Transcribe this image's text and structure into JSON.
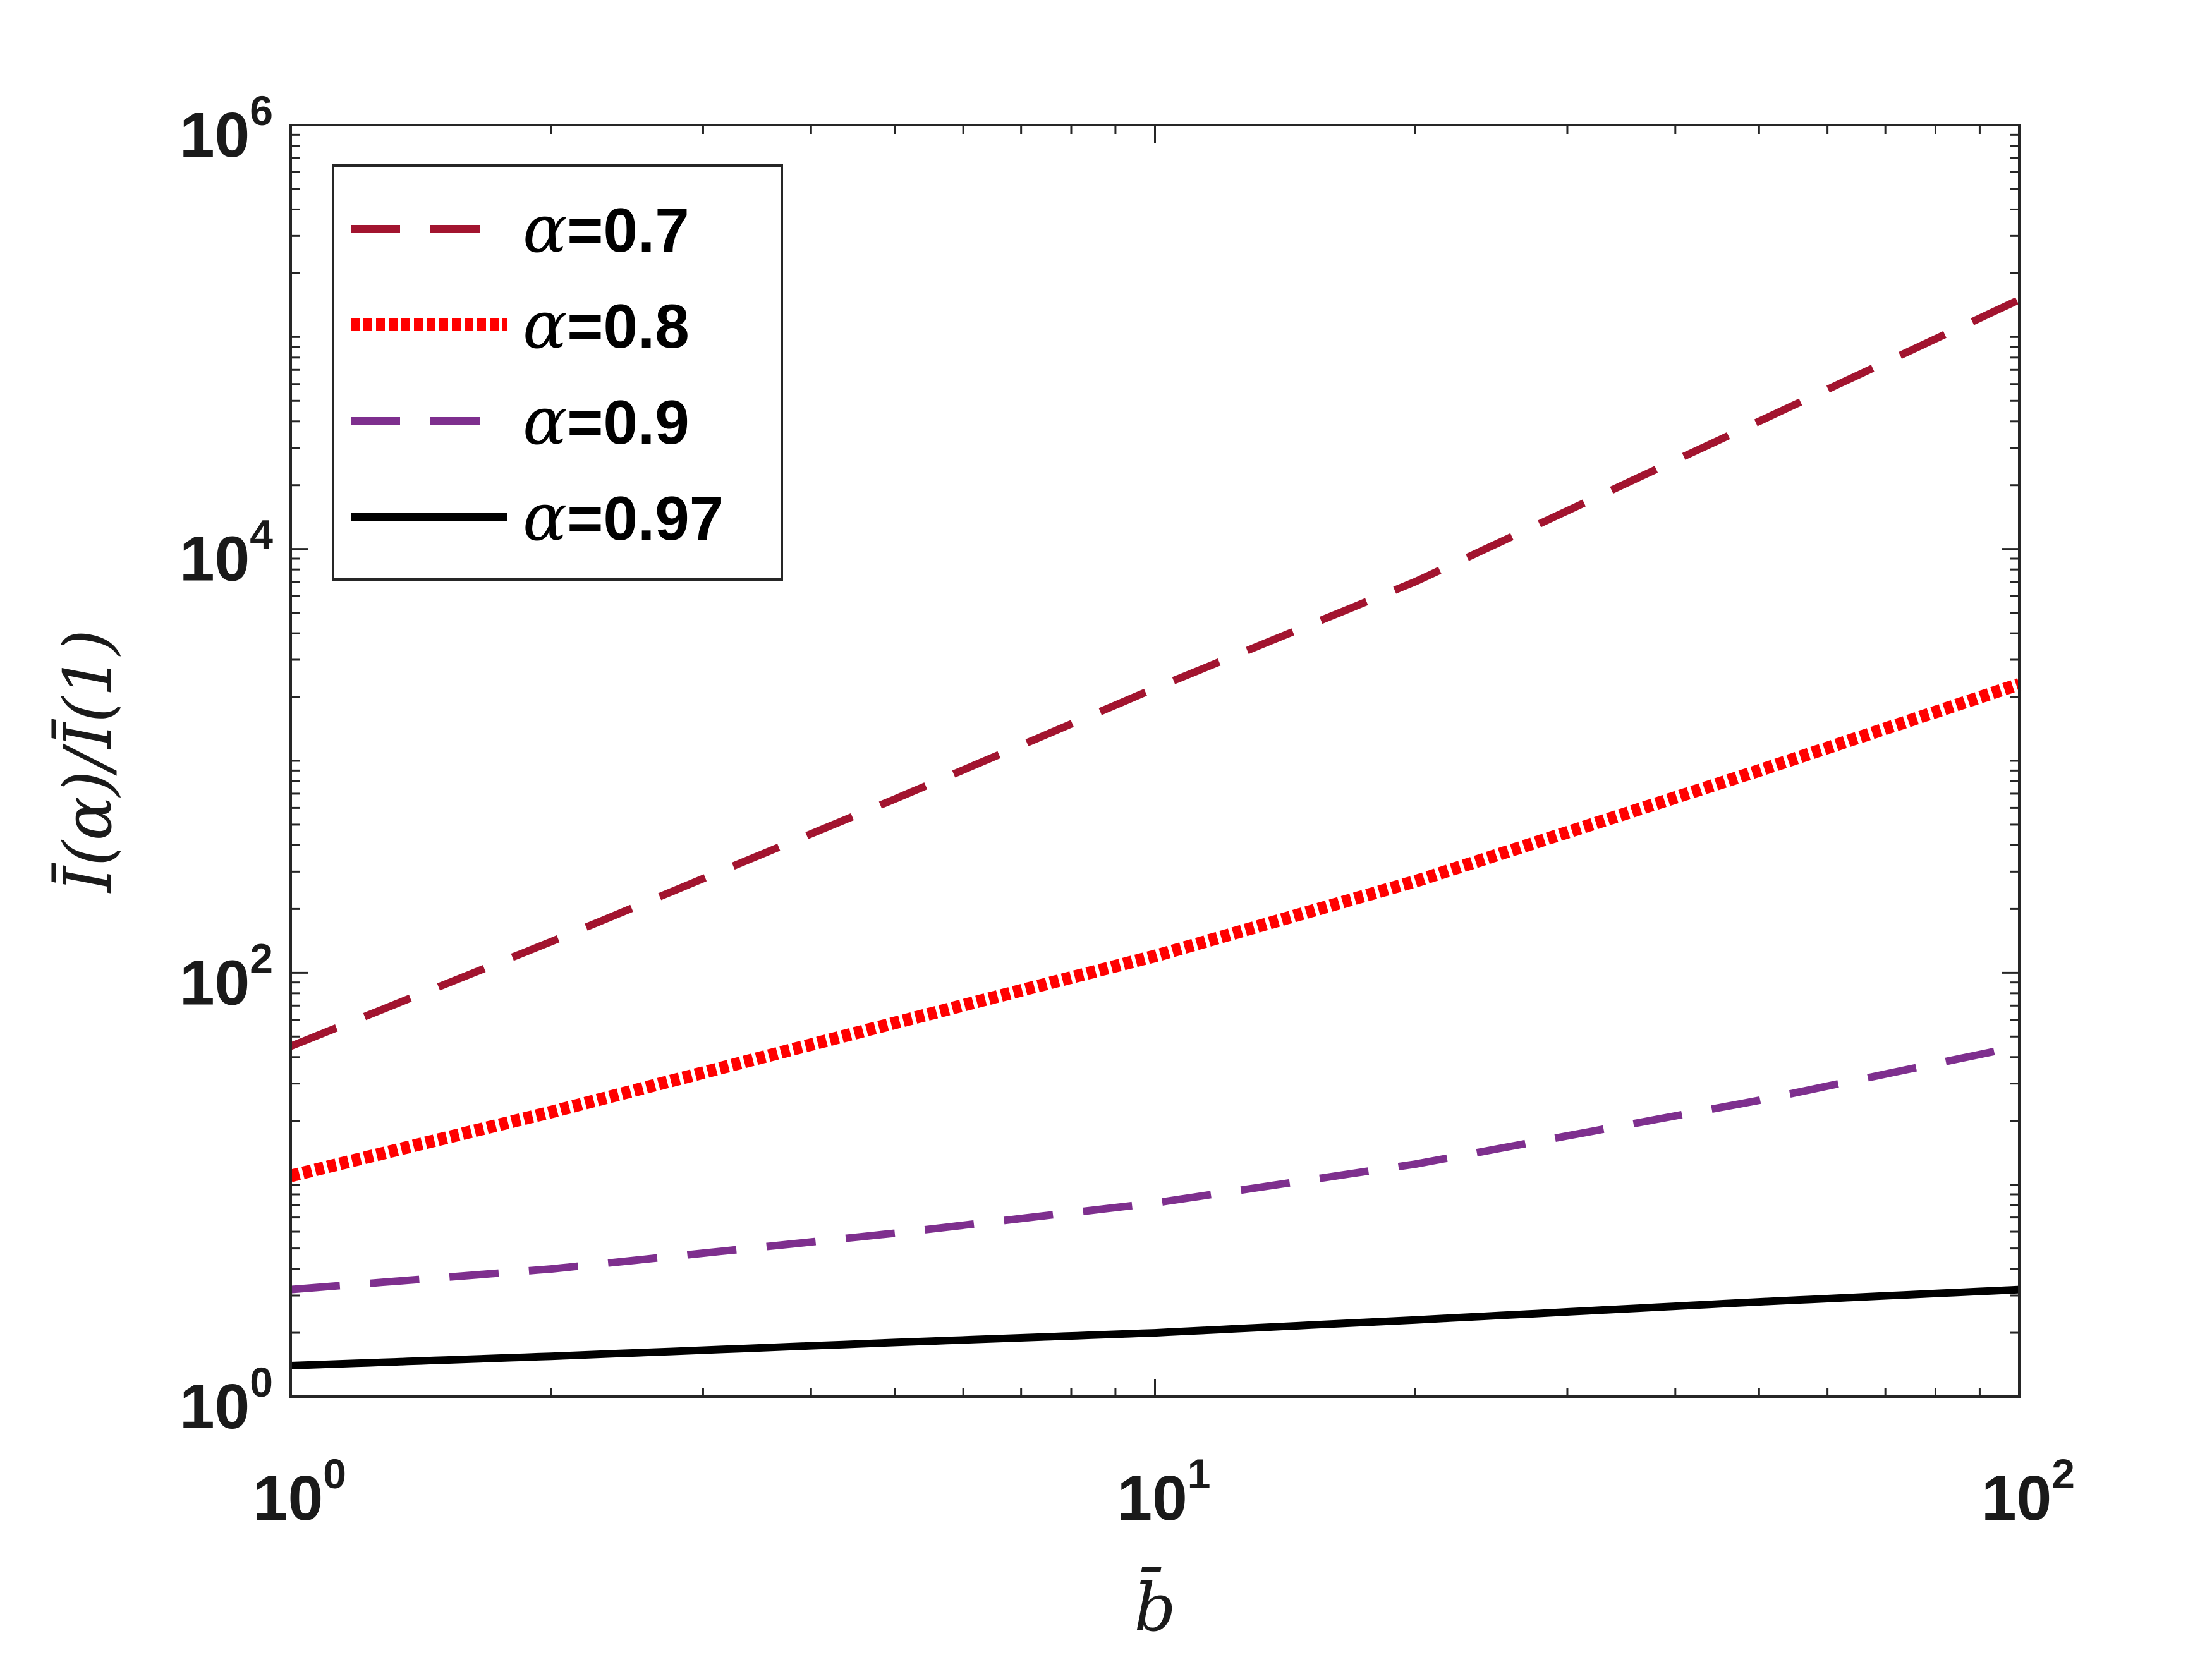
{
  "chart_data": {
    "type": "line",
    "xlabel": "b̄",
    "ylabel": "Ī(α)/Ī(1)",
    "xscale": "log",
    "yscale": "log",
    "xlim": [
      1,
      100
    ],
    "ylim": [
      1,
      1000000
    ],
    "grid": false,
    "legend_position": "top-left",
    "x_ticks": [
      {
        "base": "10",
        "exp": "0",
        "value": 1
      },
      {
        "base": "10",
        "exp": "1",
        "value": 10
      },
      {
        "base": "10",
        "exp": "2",
        "value": 100
      }
    ],
    "y_ticks": [
      {
        "base": "10",
        "exp": "0",
        "value": 1
      },
      {
        "base": "10",
        "exp": "2",
        "value": 100
      },
      {
        "base": "10",
        "exp": "4",
        "value": 10000
      },
      {
        "base": "10",
        "exp": "6",
        "value": 1000000
      }
    ],
    "series": [
      {
        "name": "α=0.7",
        "legend_symbol": "α",
        "legend_value": "=0.7",
        "color": "#a2142f",
        "style": "dashed",
        "x": [
          1,
          2,
          5,
          10,
          20,
          50,
          100
        ],
        "y": [
          45,
          140,
          660,
          2200,
          7000,
          40000,
          150000
        ]
      },
      {
        "name": "α=0.8",
        "legend_symbol": "α",
        "legend_value": "=0.8",
        "color": "#ff0000",
        "style": "dotted",
        "x": [
          1,
          2,
          5,
          10,
          20,
          50,
          100
        ],
        "y": [
          11,
          22,
          58,
          120,
          270,
          900,
          2300
        ]
      },
      {
        "name": "α=0.9",
        "legend_symbol": "α",
        "legend_value": "=0.9",
        "color": "#7e2f8e",
        "style": "dashed",
        "x": [
          1,
          2,
          5,
          10,
          20,
          50,
          100
        ],
        "y": [
          3.2,
          4.0,
          5.9,
          8.2,
          12.5,
          25,
          45
        ]
      },
      {
        "name": "α=0.97",
        "legend_symbol": "α",
        "legend_value": "=0.97",
        "color": "#000000",
        "style": "solid",
        "x": [
          1,
          2,
          5,
          10,
          20,
          50,
          100
        ],
        "y": [
          1.4,
          1.55,
          1.8,
          2.0,
          2.3,
          2.8,
          3.2
        ]
      }
    ]
  }
}
